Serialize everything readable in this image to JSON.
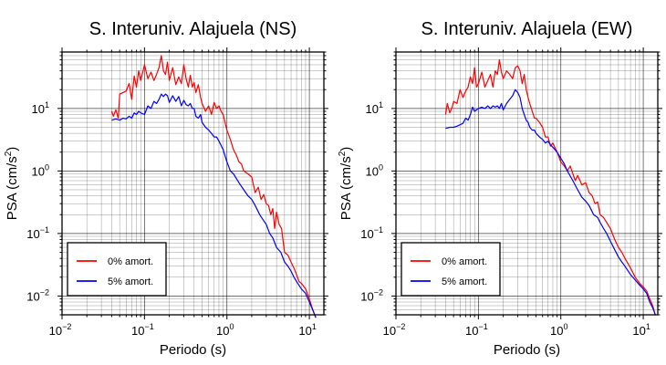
{
  "chart_data": [
    {
      "type": "line",
      "title": "S. Interuniv. Alajuela (NS)",
      "xlabel": "Periodo (s)",
      "ylabel_text": "PSA (cm/s",
      "ylabel_sup": "2",
      "ylabel_close": ")",
      "x_scale": "log",
      "y_scale": "log",
      "xlim": [
        0.01,
        15
      ],
      "ylim": [
        0.005,
        80
      ],
      "x_ticks": [
        {
          "value": 0.01,
          "label": "10",
          "exp": "−2"
        },
        {
          "value": 0.1,
          "label": "10",
          "exp": "−1"
        },
        {
          "value": 1,
          "label": "10",
          "exp": "0"
        },
        {
          "value": 10,
          "label": "10",
          "exp": "1"
        }
      ],
      "y_ticks": [
        {
          "value": 0.01,
          "label": "10",
          "exp": "−2"
        },
        {
          "value": 0.1,
          "label": "10",
          "exp": "−1"
        },
        {
          "value": 1,
          "label": "10",
          "exp": "0"
        },
        {
          "value": 10,
          "label": "10",
          "exp": "1"
        }
      ],
      "grid": true,
      "legend_position": "bottom-left",
      "series": [
        {
          "name": "0% amort.",
          "color": "#ff0000",
          "x": [
            0.04,
            0.042,
            0.045,
            0.048,
            0.05,
            0.055,
            0.06,
            0.065,
            0.07,
            0.075,
            0.08,
            0.085,
            0.09,
            0.1,
            0.11,
            0.12,
            0.13,
            0.14,
            0.15,
            0.16,
            0.17,
            0.18,
            0.19,
            0.2,
            0.22,
            0.24,
            0.26,
            0.28,
            0.3,
            0.32,
            0.34,
            0.36,
            0.38,
            0.4,
            0.42,
            0.45,
            0.48,
            0.5,
            0.55,
            0.6,
            0.65,
            0.7,
            0.75,
            0.8,
            0.85,
            0.9,
            1.0,
            1.1,
            1.2,
            1.3,
            1.4,
            1.5,
            1.6,
            1.8,
            2.0,
            2.2,
            2.4,
            2.6,
            2.8,
            3.0,
            3.2,
            3.4,
            3.6,
            3.8,
            4.0,
            4.3,
            4.6,
            5.0,
            5.5,
            6.0,
            6.5,
            7.0,
            7.5,
            8.0,
            9.0,
            10.0,
            11.0,
            12.0
          ],
          "y": [
            9.0,
            7.5,
            9.5,
            7.0,
            17.0,
            18.0,
            19.0,
            25.0,
            14.0,
            33.0,
            22.0,
            40.0,
            28.0,
            50.0,
            30.0,
            38.0,
            28.0,
            35.0,
            45.0,
            70.0,
            40.0,
            35.0,
            55.0,
            28.0,
            45.0,
            24.0,
            32.0,
            25.0,
            50.0,
            30.0,
            22.0,
            34.0,
            22.0,
            26.0,
            18.0,
            24.0,
            15.0,
            12.0,
            9.0,
            11.0,
            8.0,
            12.5,
            10.0,
            11.0,
            9.0,
            8.0,
            4.5,
            3.2,
            2.2,
            1.8,
            1.4,
            1.3,
            1.0,
            0.9,
            0.8,
            0.45,
            0.55,
            0.35,
            0.42,
            0.3,
            0.28,
            0.2,
            0.25,
            0.12,
            0.22,
            0.14,
            0.12,
            0.05,
            0.045,
            0.035,
            0.028,
            0.022,
            0.017,
            0.016,
            0.013,
            0.009,
            0.006,
            0.0045
          ]
        },
        {
          "name": "5% amort.",
          "color": "#0000ff",
          "x": [
            0.04,
            0.045,
            0.05,
            0.055,
            0.06,
            0.065,
            0.07,
            0.075,
            0.08,
            0.085,
            0.09,
            0.1,
            0.11,
            0.12,
            0.13,
            0.14,
            0.15,
            0.16,
            0.17,
            0.18,
            0.19,
            0.2,
            0.22,
            0.24,
            0.26,
            0.28,
            0.3,
            0.32,
            0.34,
            0.36,
            0.38,
            0.4,
            0.42,
            0.45,
            0.48,
            0.5,
            0.55,
            0.6,
            0.65,
            0.7,
            0.75,
            0.8,
            0.9,
            1.0,
            1.1,
            1.2,
            1.4,
            1.6,
            1.8,
            2.0,
            2.2,
            2.5,
            2.8,
            3.0,
            3.3,
            3.6,
            4.0,
            4.5,
            5.0,
            5.5,
            6.0,
            6.5,
            7.0,
            8.0,
            9.0,
            10.0,
            11.0,
            12.0
          ],
          "y": [
            6.5,
            6.8,
            6.5,
            7.0,
            6.8,
            7.5,
            7.0,
            8.5,
            8.0,
            9.0,
            8.5,
            8.0,
            11.0,
            10.0,
            13.0,
            12.0,
            14.0,
            17.0,
            15.5,
            17.0,
            16.0,
            12.5,
            16.0,
            13.0,
            15.5,
            11.0,
            13.5,
            11.5,
            11.0,
            12.0,
            10.0,
            10.0,
            7.5,
            7.0,
            8.0,
            6.0,
            5.0,
            4.5,
            4.0,
            3.5,
            3.5,
            3.0,
            2.2,
            1.4,
            1.0,
            0.9,
            0.65,
            0.5,
            0.4,
            0.35,
            0.28,
            0.2,
            0.16,
            0.14,
            0.1,
            0.085,
            0.06,
            0.05,
            0.035,
            0.03,
            0.025,
            0.02,
            0.017,
            0.013,
            0.011,
            0.008,
            0.006,
            0.0045
          ]
        }
      ]
    },
    {
      "type": "line",
      "title": "S. Interuniv. Alajuela (EW)",
      "xlabel": "Periodo (s)",
      "ylabel_text": "PSA (cm/s",
      "ylabel_sup": "2",
      "ylabel_close": ")",
      "x_scale": "log",
      "y_scale": "log",
      "xlim": [
        0.01,
        15
      ],
      "ylim": [
        0.005,
        80
      ],
      "x_ticks": [
        {
          "value": 0.01,
          "label": "10",
          "exp": "−2"
        },
        {
          "value": 0.1,
          "label": "10",
          "exp": "−1"
        },
        {
          "value": 1,
          "label": "10",
          "exp": "0"
        },
        {
          "value": 10,
          "label": "10",
          "exp": "1"
        }
      ],
      "y_ticks": [
        {
          "value": 0.01,
          "label": "10",
          "exp": "−2"
        },
        {
          "value": 0.1,
          "label": "10",
          "exp": "−1"
        },
        {
          "value": 1,
          "label": "10",
          "exp": "0"
        },
        {
          "value": 10,
          "label": "10",
          "exp": "1"
        }
      ],
      "grid": true,
      "legend_position": "bottom-left",
      "series": [
        {
          "name": "0% amort.",
          "color": "#ff0000",
          "x": [
            0.04,
            0.042,
            0.045,
            0.048,
            0.05,
            0.055,
            0.06,
            0.065,
            0.07,
            0.075,
            0.08,
            0.085,
            0.09,
            0.095,
            0.1,
            0.11,
            0.12,
            0.13,
            0.14,
            0.15,
            0.16,
            0.17,
            0.18,
            0.19,
            0.2,
            0.22,
            0.24,
            0.26,
            0.28,
            0.3,
            0.32,
            0.34,
            0.36,
            0.38,
            0.4,
            0.42,
            0.45,
            0.48,
            0.5,
            0.55,
            0.6,
            0.65,
            0.7,
            0.75,
            0.8,
            0.9,
            1.0,
            1.1,
            1.2,
            1.3,
            1.4,
            1.5,
            1.6,
            1.8,
            2.0,
            2.2,
            2.4,
            2.6,
            2.8,
            3.0,
            3.3,
            3.6,
            4.0,
            4.5,
            5.0,
            5.5,
            6.0,
            7.0,
            8.0,
            9.0,
            10.0,
            11.0,
            12.0,
            13.0,
            14.0
          ],
          "y": [
            8.0,
            12.0,
            8.5,
            10.5,
            13.0,
            12.0,
            20.0,
            15.0,
            19.0,
            22.0,
            32.0,
            25.0,
            45.0,
            22.0,
            25.0,
            38.0,
            22.0,
            28.0,
            35.0,
            22.0,
            40.0,
            35.0,
            60.0,
            38.0,
            30.0,
            40.0,
            35.0,
            30.0,
            45.0,
            48.0,
            40.0,
            25.0,
            35.0,
            20.0,
            15.0,
            12.0,
            9.0,
            7.0,
            7.0,
            6.0,
            5.0,
            3.5,
            3.5,
            2.5,
            2.8,
            2.0,
            1.4,
            1.2,
            1.0,
            1.2,
            0.9,
            0.7,
            0.85,
            0.6,
            0.65,
            0.45,
            0.4,
            0.3,
            0.32,
            0.2,
            0.18,
            0.15,
            0.12,
            0.08,
            0.06,
            0.05,
            0.04,
            0.028,
            0.02,
            0.016,
            0.014,
            0.012,
            0.009,
            0.007,
            0.005
          ]
        },
        {
          "name": "5% amort.",
          "color": "#0000ff",
          "x": [
            0.04,
            0.045,
            0.05,
            0.055,
            0.06,
            0.065,
            0.07,
            0.075,
            0.08,
            0.085,
            0.09,
            0.1,
            0.11,
            0.12,
            0.13,
            0.14,
            0.15,
            0.16,
            0.17,
            0.18,
            0.19,
            0.2,
            0.22,
            0.24,
            0.26,
            0.28,
            0.3,
            0.32,
            0.34,
            0.36,
            0.38,
            0.4,
            0.42,
            0.45,
            0.48,
            0.5,
            0.55,
            0.6,
            0.65,
            0.7,
            0.75,
            0.8,
            0.9,
            1.0,
            1.1,
            1.2,
            1.4,
            1.6,
            1.8,
            2.0,
            2.2,
            2.5,
            2.8,
            3.0,
            3.3,
            3.6,
            4.0,
            4.5,
            5.0,
            5.5,
            6.0,
            7.0,
            8.0,
            9.0,
            10.0,
            11.0,
            12.0,
            13.0,
            14.0
          ],
          "y": [
            4.8,
            5.0,
            5.0,
            5.2,
            5.5,
            5.8,
            7.0,
            6.5,
            8.0,
            10.5,
            9.0,
            10.0,
            10.5,
            10.0,
            11.0,
            10.0,
            11.0,
            10.5,
            11.0,
            10.0,
            12.0,
            9.5,
            12.0,
            14.0,
            16.0,
            20.0,
            18.0,
            15.0,
            10.0,
            8.0,
            6.5,
            6.0,
            5.0,
            4.5,
            4.5,
            4.0,
            3.5,
            3.2,
            2.8,
            3.0,
            2.6,
            2.4,
            2.0,
            1.6,
            1.3,
            1.0,
            0.7,
            0.5,
            0.38,
            0.33,
            0.28,
            0.2,
            0.18,
            0.15,
            0.12,
            0.1,
            0.075,
            0.055,
            0.042,
            0.035,
            0.03,
            0.022,
            0.018,
            0.015,
            0.013,
            0.011,
            0.008,
            0.0065,
            0.005
          ]
        }
      ]
    }
  ]
}
